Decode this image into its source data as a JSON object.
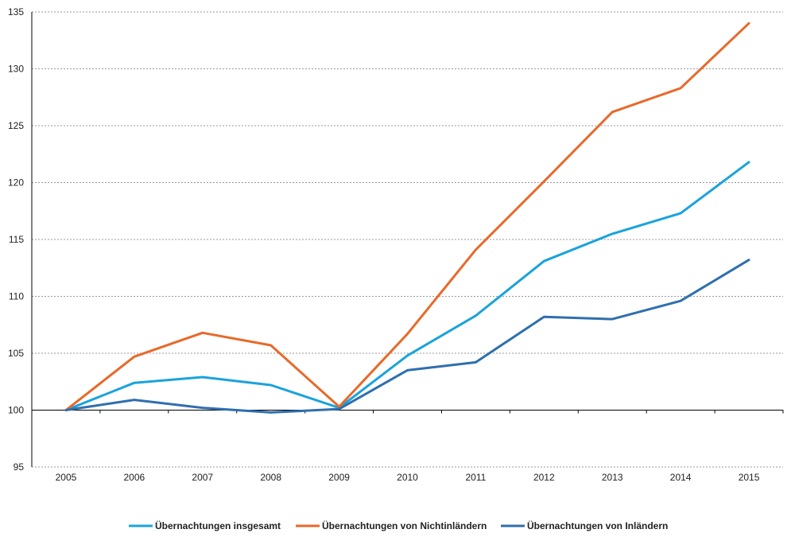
{
  "chart_data": {
    "type": "line",
    "categories": [
      "2005",
      "2006",
      "2007",
      "2008",
      "2009",
      "2010",
      "2011",
      "2012",
      "2013",
      "2014",
      "2015"
    ],
    "ylim": [
      95,
      135
    ],
    "yticks": [
      95,
      100,
      105,
      110,
      115,
      120,
      125,
      130,
      135
    ],
    "grid": true,
    "legend_position": "bottom",
    "series": [
      {
        "name": "Übernachtungen insgesamt",
        "color": "#1aa3dc",
        "values": [
          100,
          102.4,
          102.9,
          102.2,
          100.2,
          104.8,
          108.3,
          113.1,
          115.5,
          117.3,
          121.8
        ]
      },
      {
        "name": "Übernachtungen von Nichtinländern",
        "color": "#e8692a",
        "values": [
          100,
          104.7,
          106.8,
          105.7,
          100.3,
          106.7,
          114.1,
          120.1,
          126.2,
          128.3,
          134.0
        ]
      },
      {
        "name": "Übernachtungen von Inländern",
        "color": "#2f6fae",
        "values": [
          100,
          100.9,
          100.2,
          99.8,
          100.1,
          103.5,
          104.2,
          108.2,
          108.0,
          109.6,
          113.2
        ]
      }
    ]
  }
}
